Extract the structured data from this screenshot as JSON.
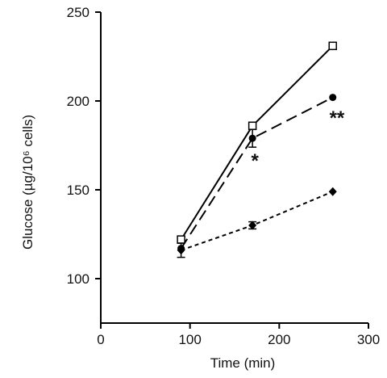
{
  "chart_data": {
    "type": "line",
    "xlabel": "Time (min)",
    "ylabel": "Glucose (µg/10⁶ cells)",
    "xlim": [
      0,
      300
    ],
    "ylim": [
      75,
      250
    ],
    "xticks": [
      0,
      100,
      200,
      300
    ],
    "yticks": [
      100,
      150,
      200,
      250
    ],
    "grid": false,
    "series": [
      {
        "marker": "open-square",
        "line": "solid",
        "x": [
          90,
          170,
          260
        ],
        "y": [
          122,
          186,
          231
        ],
        "err": [
          0,
          2,
          0
        ]
      },
      {
        "marker": "filled-circle",
        "line": "long-dash",
        "x": [
          90,
          170,
          260
        ],
        "y": [
          117,
          179,
          202
        ],
        "err": [
          0,
          5,
          0
        ]
      },
      {
        "marker": "filled-diamond",
        "line": "short-dash",
        "x": [
          90,
          170,
          260
        ],
        "y": [
          116,
          130,
          149
        ],
        "err": [
          4,
          2,
          0
        ]
      }
    ],
    "annotations": [
      {
        "text": "*",
        "x": 170,
        "y": 170
      },
      {
        "text": "**",
        "x": 262,
        "y": 194
      }
    ]
  }
}
